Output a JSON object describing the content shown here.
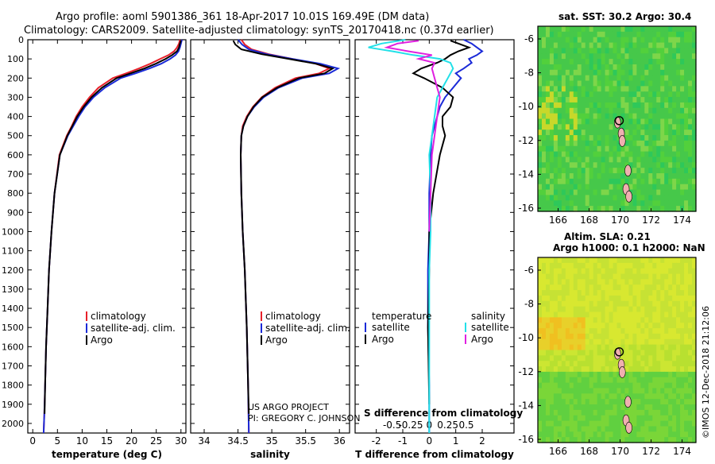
{
  "header": {
    "title_line1": "Argo profile: aoml 5901386_361 18-Apr-2017 10.01S 169.49E (DM data)",
    "title_line2": "Climatology: CARS2009. Satellite-adjusted climatology: synTS_20170418.nc (0.37d earlier)"
  },
  "colors": {
    "climatology": "#e8202a",
    "satellite": "#1a2ad8",
    "argo": "#000000",
    "sat_salinity": "#22e0e8",
    "argo_salinity_diff": "#e020e0"
  },
  "chart_data": [
    {
      "type": "line",
      "name": "temperature-profile",
      "xlabel": "temperature (deg C)",
      "ylabel": "",
      "xlim": [
        -1,
        31
      ],
      "ylim": [
        0,
        2050
      ],
      "xticks": [
        0,
        5,
        10,
        15,
        20,
        25,
        30
      ],
      "xtick_labels": [
        "0",
        "5",
        "10",
        "15",
        "20",
        "25",
        "30"
      ],
      "yticks": [
        0,
        100,
        200,
        300,
        400,
        500,
        600,
        700,
        800,
        900,
        1000,
        1100,
        1200,
        1300,
        1400,
        1500,
        1600,
        1700,
        1800,
        1900,
        2000
      ],
      "ytick_labels": [
        "0",
        "100",
        "200",
        "300",
        "400",
        "500",
        "600",
        "700",
        "800",
        "900",
        "1000",
        "1100",
        "1200",
        "1300",
        "1400",
        "1500",
        "1600",
        "1700",
        "1800",
        "1900",
        "2000"
      ],
      "legend": [
        "climatology",
        "satellite-adj. clim.",
        "Argo"
      ],
      "series": [
        {
          "name": "climatology",
          "color": "#e8202a",
          "x": [
            29.8,
            29.6,
            29.2,
            28.6,
            27.5,
            25.8,
            23.8,
            21.5,
            18.9,
            16.2,
            13.3,
            11.5,
            10.0,
            8.8,
            7.9,
            6.9,
            5.4,
            4.4,
            3.8,
            3.3,
            3.0,
            2.7,
            2.5,
            2.35,
            2.2
          ],
          "y": [
            0,
            20,
            40,
            60,
            80,
            100,
            125,
            150,
            175,
            200,
            250,
            300,
            350,
            400,
            450,
            500,
            600,
            800,
            1000,
            1200,
            1400,
            1600,
            1800,
            1950,
            2050
          ]
        },
        {
          "name": "satellite-adj. clim.",
          "color": "#1a2ad8",
          "x": [
            30.2,
            30.0,
            29.8,
            29.5,
            28.9,
            27.8,
            26.0,
            23.6,
            20.8,
            17.8,
            14.6,
            12.3,
            10.6,
            9.3,
            8.2,
            7.1,
            5.5,
            4.4,
            3.8,
            3.3,
            3.0,
            2.7,
            2.5,
            2.35,
            2.2
          ],
          "y": [
            0,
            20,
            40,
            60,
            80,
            100,
            125,
            150,
            175,
            200,
            250,
            300,
            350,
            400,
            450,
            500,
            600,
            800,
            1000,
            1200,
            1400,
            1600,
            1800,
            1950,
            2050
          ]
        },
        {
          "name": "Argo",
          "color": "#000000",
          "x": [
            30.0,
            29.8,
            29.6,
            29.2,
            28.2,
            26.9,
            24.9,
            22.6,
            19.8,
            17.0,
            14.0,
            11.9,
            10.3,
            9.0,
            8.0,
            7.0,
            5.5,
            4.4,
            3.8,
            3.3,
            3.0,
            2.7,
            2.5,
            2.4
          ],
          "y": [
            5,
            20,
            40,
            60,
            80,
            100,
            125,
            150,
            175,
            200,
            250,
            300,
            350,
            400,
            450,
            500,
            600,
            800,
            1000,
            1200,
            1400,
            1600,
            1800,
            1950
          ]
        }
      ]
    },
    {
      "type": "line",
      "name": "salinity-profile",
      "xlabel": "salinity",
      "xlim": [
        33.8,
        36.15
      ],
      "ylim": [
        0,
        2050
      ],
      "xticks": [
        34,
        34.5,
        35,
        35.5,
        36
      ],
      "xtick_labels": [
        "34",
        "34.5",
        "35",
        "35.5",
        "36"
      ],
      "legend": [
        "climatology",
        "satellite-adj. clim.",
        "Argo"
      ],
      "credit_line1": "US ARGO PROJECT",
      "credit_line2": "PI: GREGORY C. JOHNSON",
      "series": [
        {
          "name": "climatology",
          "color": "#e8202a",
          "x": [
            34.55,
            34.6,
            34.7,
            34.95,
            35.3,
            35.65,
            35.85,
            35.7,
            35.35,
            35.05,
            34.85,
            34.72,
            34.63,
            34.57,
            34.55,
            34.54,
            34.55,
            34.57,
            34.6,
            34.63,
            34.65,
            34.66
          ],
          "y": [
            0,
            25,
            50,
            75,
            100,
            125,
            150,
            175,
            200,
            250,
            300,
            350,
            400,
            450,
            500,
            600,
            800,
            1000,
            1200,
            1500,
            1800,
            2050
          ]
        },
        {
          "name": "satellite-adj. clim.",
          "color": "#1a2ad8",
          "x": [
            34.5,
            34.56,
            34.66,
            34.92,
            35.3,
            35.72,
            35.98,
            35.85,
            35.45,
            35.1,
            34.88,
            34.74,
            34.64,
            34.58,
            34.55,
            34.54,
            34.55,
            34.57,
            34.6,
            34.63,
            34.65,
            34.66
          ],
          "y": [
            0,
            25,
            50,
            75,
            100,
            125,
            150,
            175,
            200,
            250,
            300,
            350,
            400,
            450,
            500,
            600,
            800,
            1000,
            1200,
            1500,
            1800,
            2050
          ]
        },
        {
          "name": "Argo",
          "color": "#000000",
          "x": [
            34.43,
            34.46,
            34.55,
            34.85,
            35.25,
            35.65,
            35.9,
            35.78,
            35.4,
            35.08,
            34.86,
            34.73,
            34.64,
            34.58,
            34.55,
            34.54,
            34.55,
            34.57,
            34.6,
            34.63,
            34.65,
            34.66
          ],
          "y": [
            5,
            25,
            50,
            75,
            100,
            125,
            150,
            175,
            200,
            250,
            300,
            350,
            400,
            450,
            500,
            600,
            800,
            1000,
            1200,
            1500,
            1800,
            1950
          ]
        }
      ]
    },
    {
      "type": "line",
      "name": "difference-profile",
      "xlabel": "T difference from climatology",
      "top_label": "S difference from climatology",
      "xlim": [
        -2.8,
        3.2
      ],
      "ylim": [
        0,
        2050
      ],
      "xticks": [
        -2,
        -1,
        0,
        1,
        2
      ],
      "xtick_labels": [
        "-2",
        "-1",
        "0",
        "1",
        "2"
      ],
      "s_tick_labels": [
        "-0.5",
        "-0.25",
        "0",
        "0.25",
        "0.5"
      ],
      "legend_temperature_title": "temperature",
      "legend_salinity_title": "salinity",
      "legend_satellite": "satellite",
      "legend_argo": "Argo",
      "series": [
        {
          "name": "T satellite-clim",
          "color": "#1a2ad8",
          "x": [
            1.3,
            1.6,
            1.8,
            2.0,
            1.8,
            1.5,
            1.6,
            1.3,
            1.0,
            1.2,
            0.9,
            0.6,
            0.4,
            0.3,
            0.2,
            0.1,
            0.05,
            0.0,
            0.0,
            -0.05,
            -0.05,
            0.0,
            0.0
          ],
          "y": [
            0,
            20,
            40,
            60,
            80,
            100,
            120,
            150,
            175,
            200,
            250,
            300,
            350,
            400,
            450,
            500,
            600,
            800,
            1000,
            1200,
            1500,
            1800,
            2050
          ]
        },
        {
          "name": "T Argo-clim",
          "color": "#000000",
          "x": [
            0.8,
            1.1,
            1.5,
            1.1,
            0.8,
            0.6,
            0.3,
            -0.3,
            -0.6,
            -0.2,
            0.5,
            0.9,
            0.8,
            0.5,
            0.5,
            0.6,
            0.4,
            0.15,
            0.0,
            0.0,
            -0.05,
            0.0
          ],
          "y": [
            5,
            20,
            40,
            60,
            80,
            100,
            120,
            150,
            175,
            200,
            250,
            300,
            350,
            400,
            450,
            500,
            600,
            800,
            1000,
            1200,
            1500,
            1900
          ]
        },
        {
          "name": "S satellite-clim",
          "color": "#22e0e8",
          "x": [
            -0.9,
            -1.8,
            -2.3,
            -1.4,
            -0.6,
            0.4,
            0.8,
            0.9,
            0.7,
            0.5,
            0.3,
            0.2,
            0.1,
            0.0,
            0.05,
            0.05,
            0.0,
            0.0,
            0.0
          ],
          "y": [
            0,
            20,
            40,
            60,
            80,
            100,
            120,
            150,
            200,
            250,
            300,
            400,
            500,
            600,
            800,
            1000,
            1200,
            1500,
            2050
          ]
        },
        {
          "name": "S Argo-clim",
          "color": "#e020e0",
          "x": [
            -0.4,
            -1.2,
            -1.6,
            -0.8,
            0.1,
            -0.4,
            0.2,
            0.1,
            0.2,
            0.3,
            0.4,
            0.3,
            0.2,
            0.1,
            0.05,
            0.0
          ],
          "y": [
            5,
            20,
            40,
            60,
            80,
            100,
            120,
            150,
            200,
            250,
            300,
            400,
            500,
            600,
            800,
            1000
          ]
        }
      ]
    }
  ],
  "maps": {
    "sst": {
      "title": "sat. SST: 30.2 Argo: 30.4",
      "xticks": [
        "166",
        "168",
        "170",
        "172",
        "174"
      ],
      "yticks": [
        "-6",
        "-8",
        "-10",
        "-12",
        "-14",
        "-16"
      ]
    },
    "sla": {
      "title_line1": "Altim. SLA: 0.21",
      "title_line2": "Argo h1000: 0.1 h2000: NaN",
      "xticks": [
        "166",
        "168",
        "170",
        "172",
        "174"
      ],
      "yticks": [
        "-6",
        "-8",
        "-10",
        "-12",
        "-14",
        "-16"
      ]
    },
    "watermark": "©IMOS 12-Dec-2018 21:12:06"
  }
}
